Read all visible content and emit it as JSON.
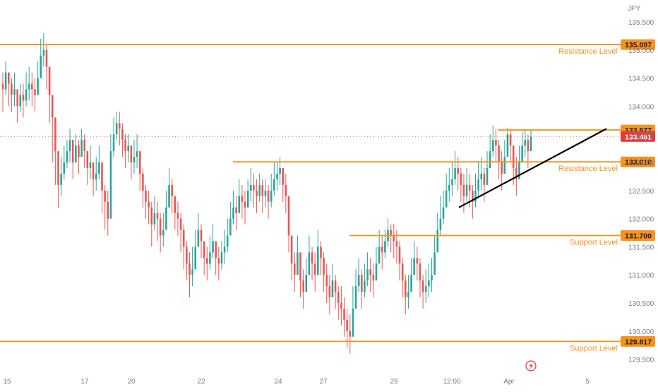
{
  "chart_data": {
    "type": "candlestick",
    "currency": "JPY",
    "ylim": [
      129.4,
      135.75
    ],
    "y_ticks": [
      "135.500",
      "135.000",
      "134.500",
      "134.000",
      "133.500",
      "133.000",
      "132.500",
      "132.000",
      "131.500",
      "131.000",
      "130.500",
      "130.000",
      "129.500"
    ],
    "x_ticks": [
      "15",
      "17",
      "20",
      "22",
      "24",
      "27",
      "29",
      "12:00",
      "Apr",
      "5"
    ],
    "current_price": {
      "value": 133.461,
      "label": "133.461"
    },
    "levels": [
      {
        "label": "135.097",
        "value": 135.097,
        "name": "Resistance Level"
      },
      {
        "label": "133.577",
        "value": 133.577,
        "name": ""
      },
      {
        "label": "133.010",
        "value": 133.01,
        "name": "Resistance Level"
      },
      {
        "label": "131.700",
        "value": 131.7,
        "name": "Support Level"
      },
      {
        "label": "129.817",
        "value": 129.817,
        "name": "Support Level"
      }
    ],
    "trendline": {
      "start": 132.2,
      "end": 133.6
    },
    "closes": [
      134.3,
      134.6,
      134.4,
      134.2,
      134.3,
      134.0,
      134.2,
      134.1,
      134.3,
      134.4,
      134.3,
      134.2,
      134.5,
      134.9,
      135.0,
      134.7,
      134.2,
      133.8,
      133.2,
      132.6,
      132.8,
      133.0,
      133.2,
      133.4,
      133.0,
      133.3,
      133.1,
      133.4,
      133.2,
      132.9,
      133.0,
      132.7,
      132.8,
      133.0,
      132.5,
      132.3,
      132.0,
      133.2,
      133.5,
      133.7,
      133.6,
      133.4,
      133.2,
      133.3,
      133.0,
      133.1,
      133.2,
      132.8,
      132.5,
      132.3,
      132.2,
      131.9,
      132.1,
      132.0,
      131.7,
      131.8,
      132.2,
      132.6,
      132.4,
      132.1,
      132.0,
      131.8,
      131.5,
      131.2,
      131.0,
      131.1,
      131.5,
      131.8,
      131.6,
      131.3,
      131.2,
      131.4,
      131.6,
      131.3,
      131.2,
      131.4,
      131.5,
      131.7,
      132.0,
      132.2,
      132.1,
      132.4,
      132.3,
      132.2,
      132.5,
      132.6,
      132.5,
      132.4,
      132.6,
      132.4,
      132.5,
      132.3,
      132.5,
      132.7,
      132.8,
      132.9,
      132.6,
      132.4,
      131.7,
      131.2,
      131.0,
      131.4,
      130.9,
      130.7,
      131.0,
      131.4,
      131.2,
      131.0,
      131.5,
      131.3,
      131.0,
      130.8,
      130.6,
      130.9,
      130.7,
      130.5,
      130.4,
      130.2,
      130.0,
      129.9,
      130.4,
      130.8,
      131.0,
      130.7,
      130.9,
      131.1,
      131.0,
      130.9,
      131.2,
      131.5,
      131.4,
      131.6,
      131.8,
      131.7,
      131.6,
      131.5,
      131.2,
      130.9,
      130.6,
      130.7,
      131.0,
      131.3,
      131.2,
      130.9,
      130.7,
      130.8,
      130.9,
      131.0,
      131.4,
      131.8,
      132.0,
      132.2,
      132.5,
      132.6,
      132.7,
      132.9,
      132.8,
      132.6,
      132.4,
      132.6,
      132.5,
      132.3,
      132.5,
      132.7,
      132.8,
      132.6,
      132.9,
      133.2,
      133.4,
      133.3,
      133.0,
      132.8,
      133.1,
      133.5,
      133.3,
      132.9,
      132.7,
      133.0,
      133.3,
      133.4,
      133.2,
      133.461
    ],
    "highs": [
      134.6,
      134.8,
      134.6,
      134.5,
      134.6,
      134.3,
      134.4,
      134.4,
      134.6,
      134.7,
      134.6,
      134.5,
      134.8,
      135.2,
      135.3,
      135.1,
      134.7,
      134.2,
      133.6,
      133.2,
      133.1,
      133.3,
      133.4,
      133.6,
      133.3,
      133.5,
      133.4,
      133.6,
      133.5,
      133.2,
      133.3,
      133.0,
      133.1,
      133.3,
      132.8,
      132.6,
      132.5,
      133.5,
      133.8,
      133.9,
      133.9,
      133.7,
      133.5,
      133.5,
      133.3,
      133.4,
      133.5,
      133.2,
      132.9,
      132.6,
      132.5,
      132.3,
      132.4,
      132.3,
      132.1,
      132.1,
      132.5,
      132.9,
      132.7,
      132.4,
      132.3,
      132.1,
      131.9,
      131.6,
      131.4,
      131.5,
      131.8,
      132.1,
      131.9,
      131.6,
      131.5,
      131.7,
      131.9,
      131.6,
      131.5,
      131.6,
      131.8,
      132.0,
      132.3,
      132.5,
      132.4,
      132.7,
      132.6,
      132.5,
      132.7,
      132.9,
      132.8,
      132.7,
      132.8,
      132.7,
      132.7,
      132.6,
      132.8,
      133.0,
      133.0,
      133.1,
      132.9,
      132.8,
      132.4,
      131.6,
      131.4,
      131.7,
      131.3,
      131.1,
      131.3,
      131.7,
      131.5,
      131.4,
      131.8,
      131.6,
      131.4,
      131.2,
      131.0,
      131.2,
      131.0,
      130.8,
      130.8,
      130.6,
      130.4,
      130.3,
      130.8,
      131.1,
      131.3,
      131.1,
      131.2,
      131.4,
      131.3,
      131.2,
      131.5,
      131.8,
      131.7,
      131.8,
      132.0,
      131.9,
      131.9,
      131.8,
      131.6,
      131.3,
      131.0,
      131.0,
      131.3,
      131.6,
      131.5,
      131.3,
      131.0,
      131.1,
      131.2,
      131.3,
      131.7,
      132.1,
      132.4,
      132.5,
      132.8,
      132.9,
      133.0,
      133.2,
      133.1,
      132.9,
      132.8,
      132.9,
      132.8,
      132.6,
      132.8,
      133.0,
      133.1,
      132.9,
      133.2,
      133.5,
      133.65,
      133.6,
      133.4,
      133.2,
      133.4,
      133.62,
      133.6,
      133.3,
      133.1,
      133.3,
      133.55,
      133.6,
      133.5,
      133.58
    ],
    "lows": [
      133.9,
      134.2,
      134.0,
      133.9,
      134.0,
      133.7,
      133.9,
      133.8,
      134.0,
      134.1,
      134.0,
      133.9,
      134.2,
      134.6,
      134.7,
      134.3,
      133.7,
      133.0,
      132.6,
      132.2,
      132.4,
      132.7,
      132.9,
      133.0,
      132.7,
      133.0,
      132.8,
      133.1,
      132.9,
      132.6,
      132.7,
      132.4,
      132.5,
      132.7,
      132.1,
      131.8,
      131.7,
      132.6,
      133.1,
      133.4,
      133.3,
      133.1,
      132.9,
      133.0,
      132.7,
      132.8,
      132.9,
      132.5,
      132.2,
      132.0,
      131.9,
      131.5,
      131.8,
      131.6,
      131.4,
      131.5,
      131.9,
      132.3,
      132.1,
      131.8,
      131.7,
      131.4,
      131.1,
      130.9,
      130.6,
      130.8,
      131.1,
      131.5,
      131.3,
      131.0,
      130.9,
      131.1,
      131.3,
      131.0,
      130.9,
      131.1,
      131.2,
      131.4,
      131.7,
      131.9,
      131.8,
      132.1,
      132.0,
      131.9,
      132.2,
      132.3,
      132.2,
      132.1,
      132.3,
      132.1,
      132.2,
      132.0,
      132.2,
      132.4,
      132.5,
      132.6,
      132.3,
      132.1,
      131.4,
      130.9,
      130.7,
      131.0,
      130.6,
      130.4,
      130.7,
      131.0,
      130.9,
      130.7,
      131.1,
      131.0,
      130.7,
      130.5,
      130.3,
      130.6,
      130.4,
      130.2,
      130.1,
      129.9,
      129.7,
      129.6,
      130.0,
      130.5,
      130.7,
      130.4,
      130.6,
      130.8,
      130.7,
      130.6,
      130.9,
      131.2,
      131.1,
      131.3,
      131.5,
      131.4,
      131.3,
      131.2,
      130.9,
      130.6,
      130.3,
      130.4,
      130.7,
      131.0,
      130.9,
      130.6,
      130.4,
      130.5,
      130.6,
      130.7,
      131.1,
      131.5,
      131.7,
      131.9,
      132.2,
      132.3,
      132.4,
      132.6,
      132.5,
      132.3,
      132.1,
      132.3,
      132.2,
      132.0,
      132.2,
      132.4,
      132.5,
      132.3,
      132.6,
      132.9,
      133.1,
      133.0,
      132.7,
      132.5,
      132.8,
      133.2,
      133.0,
      132.6,
      132.4,
      132.7,
      133.0,
      133.1,
      132.9,
      133.2
    ]
  }
}
